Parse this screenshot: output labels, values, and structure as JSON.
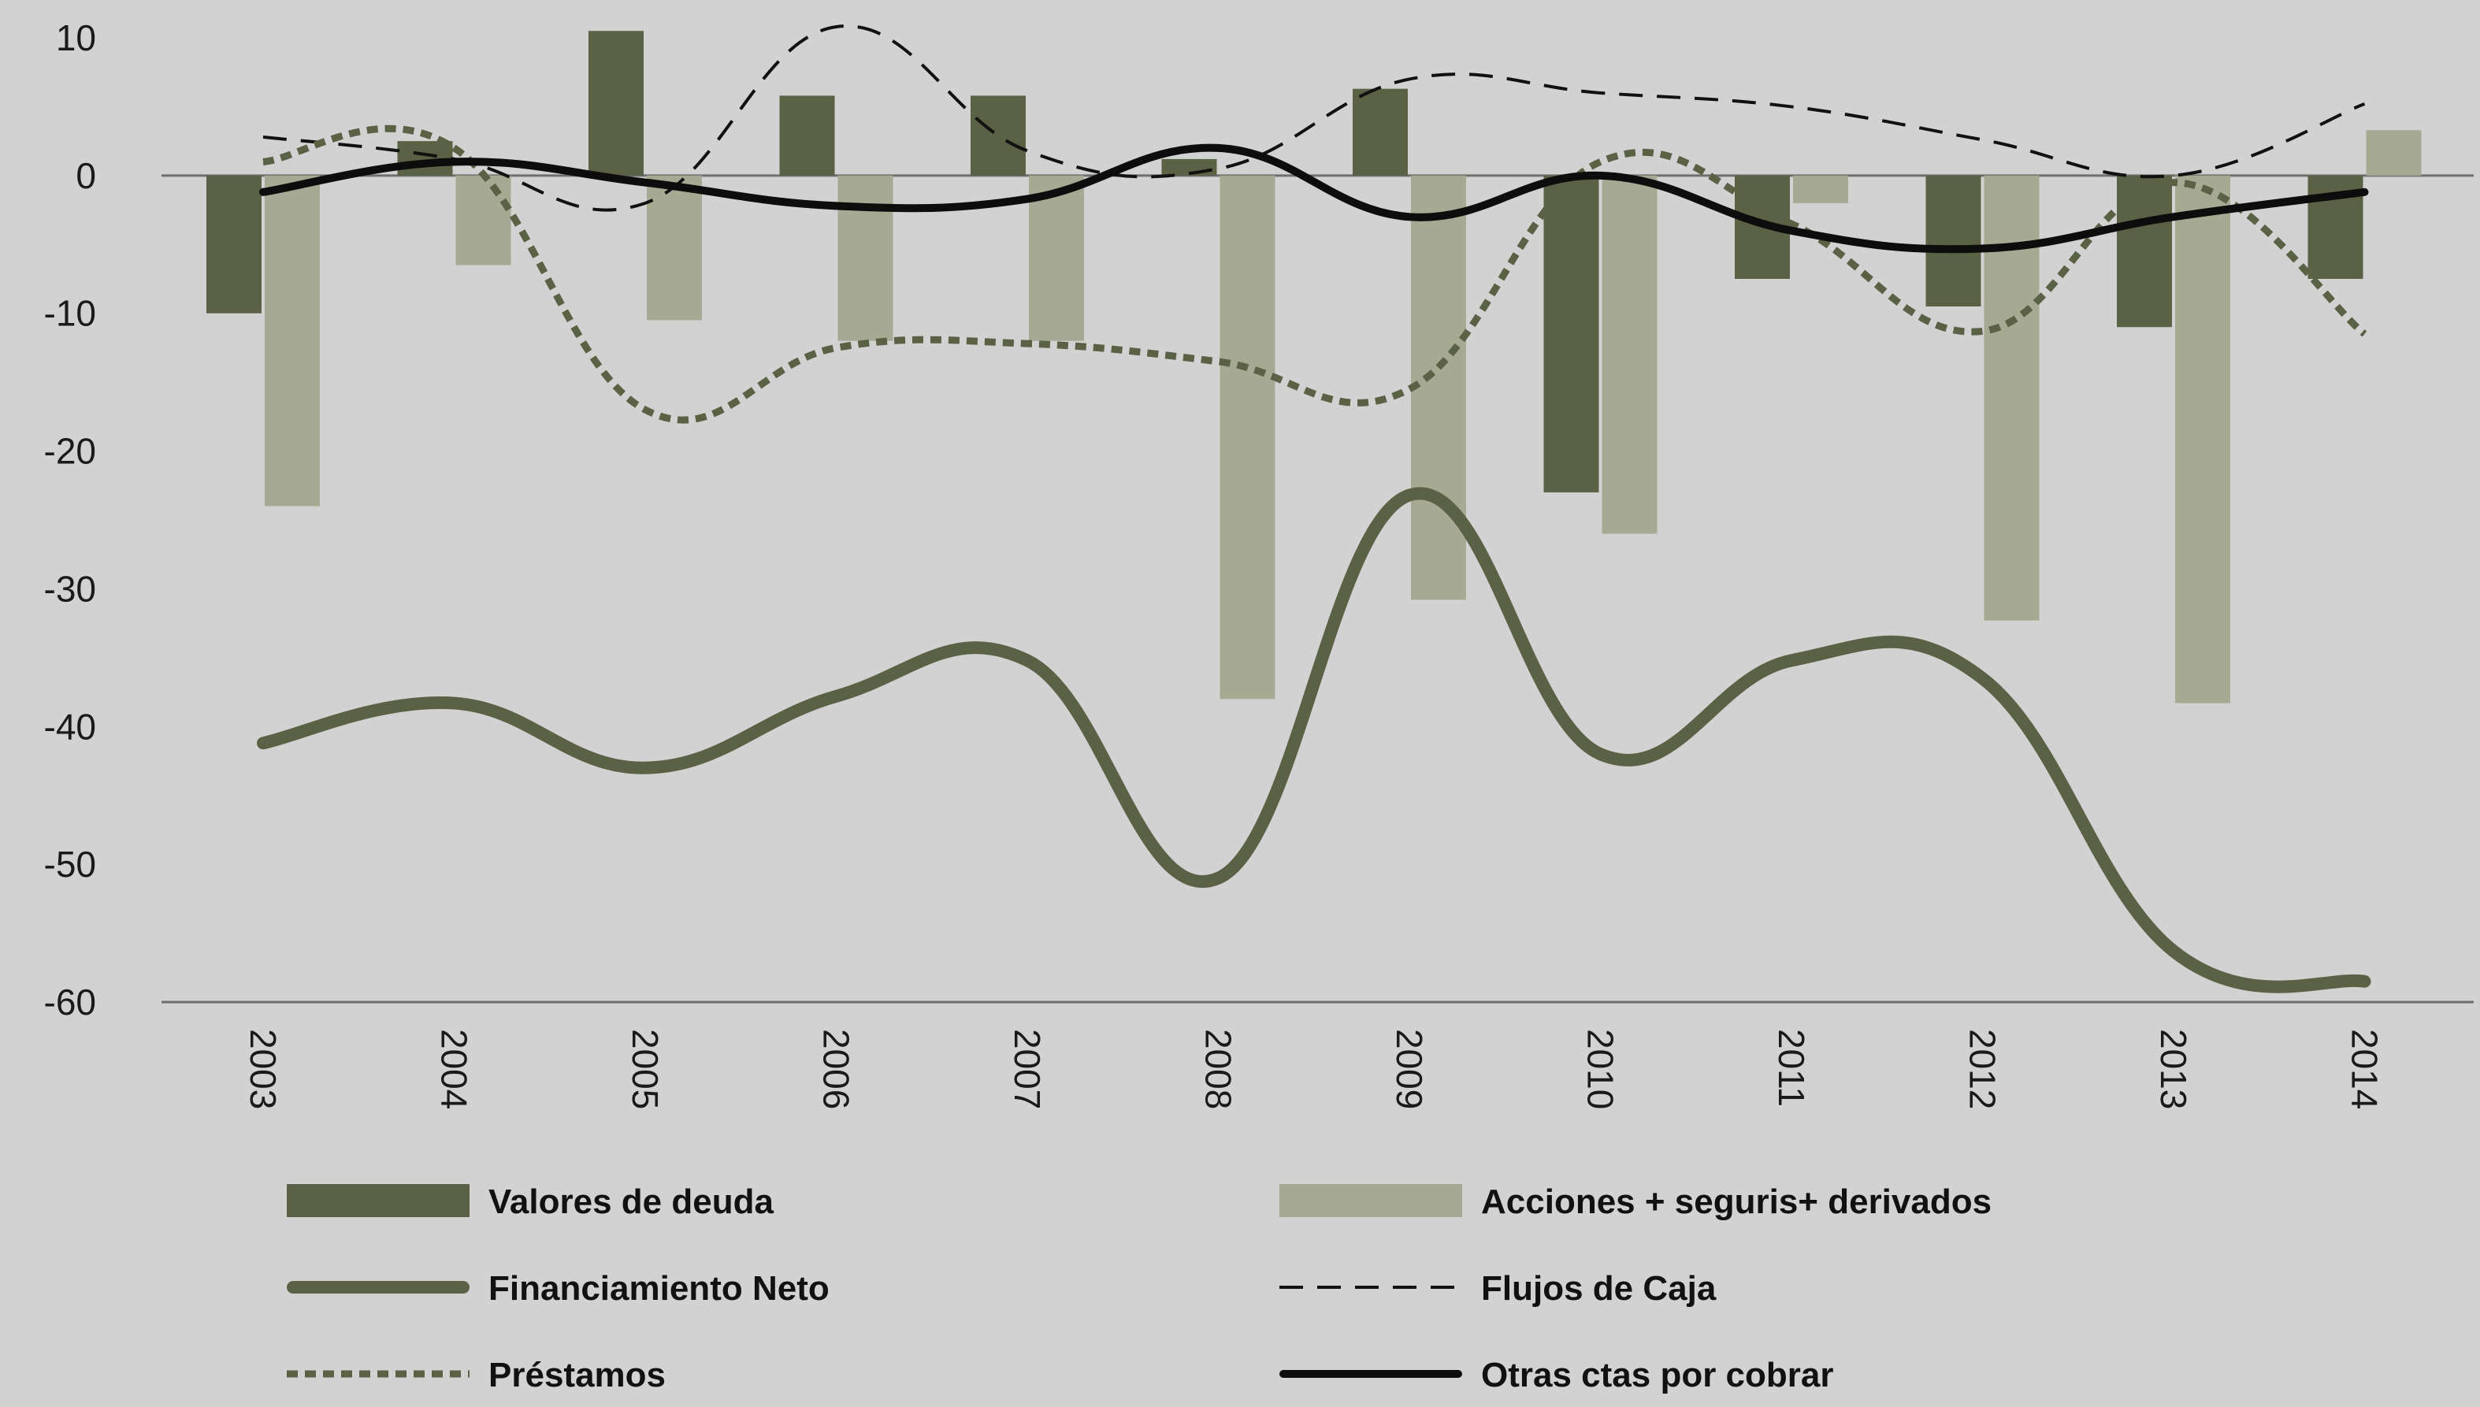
{
  "chart_data": {
    "type": "bar",
    "categories": [
      "2003",
      "2004",
      "2005",
      "2006",
      "2007",
      "2008",
      "2009",
      "2010",
      "2011",
      "2012",
      "2013",
      "2014"
    ],
    "ylim": [
      -60,
      10
    ],
    "yticks": [
      10,
      0,
      -10,
      -20,
      -30,
      -40,
      -50,
      -60
    ],
    "grid": false,
    "legend_position": "bottom",
    "series": [
      {
        "name": "Valores de deuda",
        "type": "bar",
        "color": "#5a6144",
        "values": [
          -10,
          2.5,
          10.5,
          5.8,
          5.8,
          1.2,
          6.3,
          -23,
          -7.5,
          -9.5,
          -11,
          -7.5
        ]
      },
      {
        "name": "Acciones + seguris+ derivados",
        "type": "bar",
        "color": "#a7aa93",
        "values": [
          -24,
          -6.5,
          -10.5,
          -12,
          -12,
          -38,
          -30.8,
          -26,
          -2,
          -32.3,
          -38.3,
          3.3
        ]
      },
      {
        "name": "Financiamiento Neto",
        "type": "line",
        "style": "thick",
        "color": "#5a6144",
        "values": [
          -41.2,
          -38.3,
          -43,
          -37.8,
          -35.2,
          -51,
          -23.2,
          -42,
          -35.2,
          -36.5,
          -56.3,
          -58.5
        ]
      },
      {
        "name": "Flujos de Caja",
        "type": "line",
        "style": "dashed",
        "color": "#111111",
        "values": [
          2.8,
          1.2,
          -2,
          10.8,
          1.8,
          0.5,
          7,
          6,
          5,
          2.6,
          0,
          5.2
        ]
      },
      {
        "name": "Préstamos",
        "type": "line",
        "style": "dotted",
        "color": "#5a6144",
        "values": [
          1,
          2,
          -17,
          -12.5,
          -12.2,
          -13.5,
          -15.5,
          1,
          -3.5,
          -11.3,
          -0.5,
          -11.5
        ]
      },
      {
        "name": "Otras ctas por cobrar",
        "type": "line",
        "style": "solid",
        "color": "#0d0d0d",
        "values": [
          -1.2,
          1,
          -0.5,
          -2.2,
          -1.7,
          2,
          -3,
          0,
          -4,
          -5.3,
          -3,
          -1.2
        ]
      }
    ]
  }
}
